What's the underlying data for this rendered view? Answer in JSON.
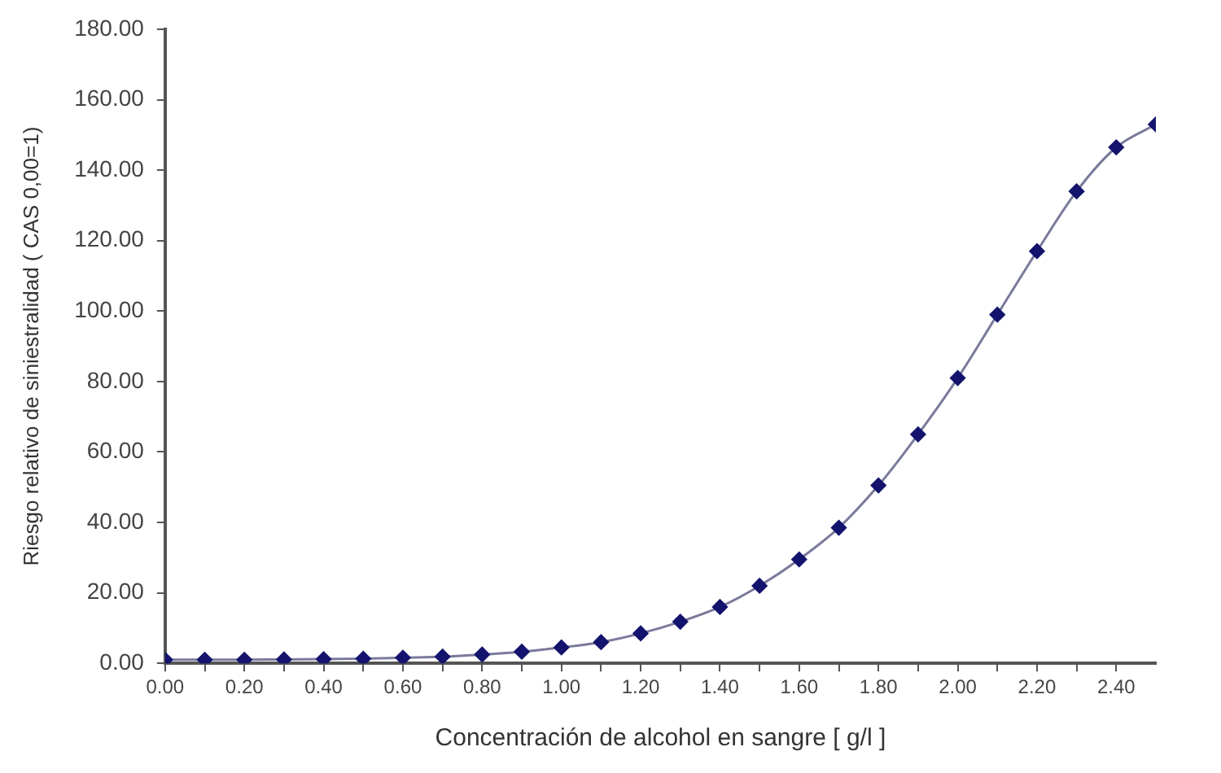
{
  "chart_data": {
    "type": "line",
    "xlabel": "Concentración de alcohol en sangre [ g/l ]",
    "ylabel": "Riesgo relativo de siniestralidad ( CAS 0,00=1)",
    "x": [
      0,
      0.1,
      0.2,
      0.3,
      0.4,
      0.5,
      0.6,
      0.7,
      0.8,
      0.9,
      1.0,
      1.1,
      1.2,
      1.3,
      1.4,
      1.5,
      1.6,
      1.7,
      1.8,
      1.9,
      2.0,
      2.1,
      2.2,
      2.3,
      2.4,
      2.5
    ],
    "series": [
      {
        "color": "#14146e",
        "values": [
          1,
          1,
          1,
          1.1,
          1.2,
          1.3,
          1.6,
          1.9,
          2.5,
          3.3,
          4.5,
          6,
          8.5,
          11.8,
          16,
          22,
          29.5,
          38.5,
          50.5,
          65,
          81,
          99,
          117,
          134,
          146.5,
          153
        ]
      }
    ],
    "xlim": [
      0,
      2.5
    ],
    "xticks": [
      {
        "value": 0,
        "label": "0.00"
      },
      {
        "value": 0.1,
        "label": null
      },
      {
        "value": 0.2,
        "label": "0.20"
      },
      {
        "value": 0.3,
        "label": null
      },
      {
        "value": 0.4,
        "label": "0.40"
      },
      {
        "value": 0.5,
        "label": null
      },
      {
        "value": 0.6,
        "label": "0.60"
      },
      {
        "value": 0.7,
        "label": null
      },
      {
        "value": 0.8,
        "label": "0.80"
      },
      {
        "value": 0.9,
        "label": null
      },
      {
        "value": 1.0,
        "label": "1.00"
      },
      {
        "value": 1.1,
        "label": null
      },
      {
        "value": 1.2,
        "label": "1.20"
      },
      {
        "value": 1.3,
        "label": null
      },
      {
        "value": 1.4,
        "label": "1.40"
      },
      {
        "value": 1.5,
        "label": null
      },
      {
        "value": 1.6,
        "label": "1.60"
      },
      {
        "value": 1.7,
        "label": null
      },
      {
        "value": 1.8,
        "label": "1.80"
      },
      {
        "value": 1.9,
        "label": null
      },
      {
        "value": 2.0,
        "label": "2.00"
      },
      {
        "value": 2.1,
        "label": null
      },
      {
        "value": 2.2,
        "label": "2.20"
      },
      {
        "value": 2.3,
        "label": null
      },
      {
        "value": 2.4,
        "label": "2.40"
      }
    ],
    "ylim": [
      0,
      180
    ],
    "yticks": [
      {
        "value": 0,
        "label": "0.00"
      },
      {
        "value": 20,
        "label": "20.00"
      },
      {
        "value": 40,
        "label": "40.00"
      },
      {
        "value": 60,
        "label": "60.00"
      },
      {
        "value": 80,
        "label": "80.00"
      },
      {
        "value": 100,
        "label": "100.00"
      },
      {
        "value": 120,
        "label": "120.00"
      },
      {
        "value": 140,
        "label": "140.00"
      },
      {
        "value": 160,
        "label": "160.00"
      },
      {
        "value": 180,
        "label": "180.00"
      }
    ],
    "grid": false,
    "legend": false,
    "marker": "diamond",
    "line_style": "solid"
  }
}
